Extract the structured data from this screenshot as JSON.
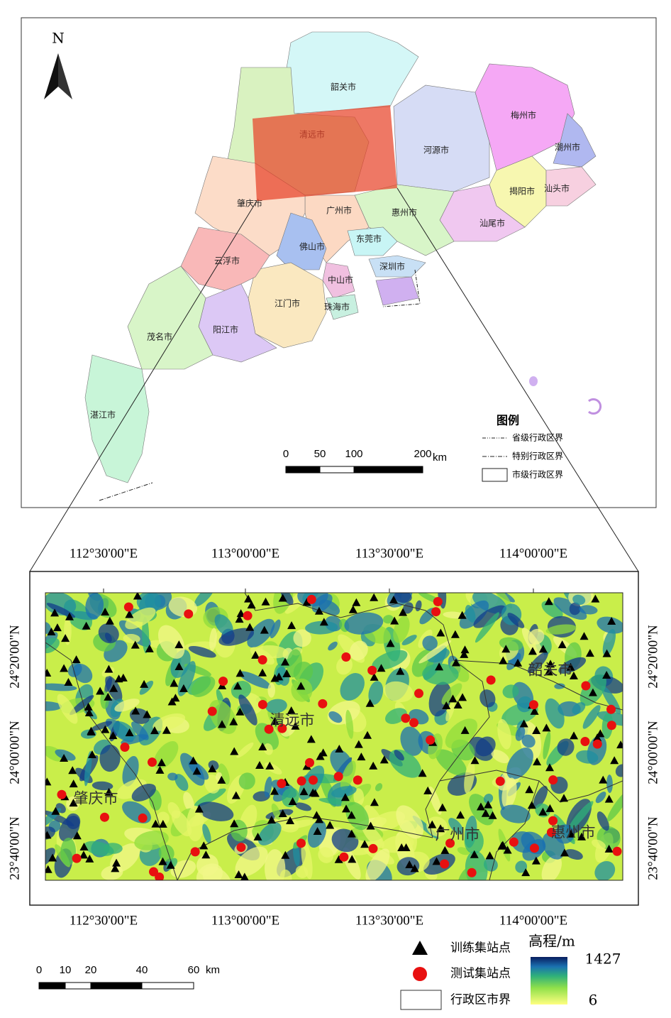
{
  "overview_map": {
    "north": "N",
    "cities": [
      "韶关市",
      "清远市",
      "河源市",
      "梅州市",
      "潮州市",
      "揭阳市",
      "汕头市",
      "汕尾市",
      "惠州市",
      "广州市",
      "东莞市",
      "深圳市",
      "肇庆市",
      "佛山市",
      "中山市",
      "珠海市",
      "江门市",
      "云浮市",
      "阳江市",
      "茂名市",
      "湛江市"
    ],
    "legend": {
      "title": "图例",
      "items": [
        "省级行政区界",
        "特别行政区界",
        "市级行政区界"
      ]
    },
    "scale_bar": {
      "ticks": [
        0,
        50,
        100,
        200
      ],
      "unit": "km"
    }
  },
  "detail_map": {
    "lon_ticks": [
      "112°30'00\"E",
      "113°00'00\"E",
      "113°30'00\"E",
      "114°00'00\"E"
    ],
    "lat_ticks": [
      "24°20'00\"N",
      "24°00'00\"N",
      "23°40'00\"N"
    ],
    "cities": [
      "韶关市",
      "清远市",
      "肇庆市",
      "广州市",
      "惠州市"
    ],
    "legend": [
      "训练集站点",
      "测试集站点",
      "行政区市界"
    ],
    "elevation": {
      "title": "高程/m",
      "max": 1427,
      "min": 6
    },
    "scale_bar": {
      "ticks": [
        0,
        10,
        20,
        40,
        60
      ],
      "unit": "km"
    }
  }
}
